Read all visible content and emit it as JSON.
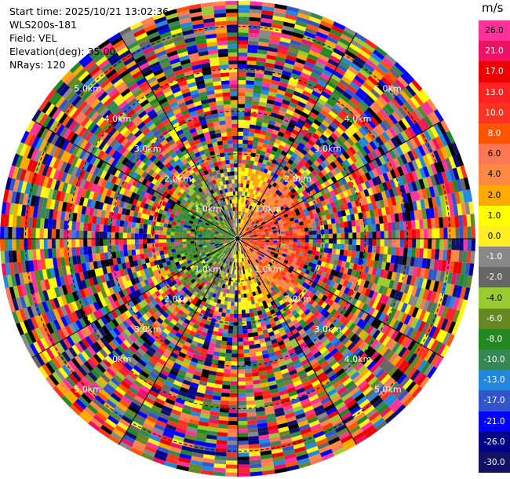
{
  "info": {
    "start_time": "Start time: 2025/10/21 13:02:36",
    "instrument": "WLS200s-181",
    "field": "Field: VEL",
    "elevation": "Elevation(deg): 35.00",
    "nrays": "NRays: 120"
  },
  "colorbar": {
    "unit": "m/s",
    "labels": [
      "26.0",
      "21.0",
      "17.0",
      "13.0",
      "10.0",
      "8.0",
      "6.0",
      "4.0",
      "2.0",
      "1.0",
      "0.0",
      "-1.0",
      "-2.0",
      "-4.0",
      "-6.0",
      "-8.0",
      "-10.0",
      "-13.0",
      "-17.0",
      "-21.0",
      "-26.0",
      "-30.0"
    ],
    "colors": [
      "#ff3399",
      "#ee1166",
      "#ee0000",
      "#ff2222",
      "#ff3322",
      "#ff5500",
      "#ff7755",
      "#ff8844",
      "#ffaa00",
      "#ffff00",
      "#ffee22",
      "#888888",
      "#666666",
      "#99cc33",
      "#668822",
      "#228822",
      "#338855",
      "#2288dd",
      "#3355cc",
      "#0000ff",
      "#000088",
      "#111166"
    ]
  },
  "chart_data": {
    "type": "heatmap",
    "projection": "polar (PPI)",
    "field": "VEL",
    "unit": "m/s",
    "elevation_deg": 35.0,
    "n_rays": 120,
    "range_ring_labels": [
      "1.0km",
      "2.0km",
      "3.0km",
      "4.0km",
      "5.0km"
    ],
    "max_range_km": 5.6,
    "value_range": [
      -30,
      26
    ],
    "pattern": "Near-range velocities: negative (blue/green) toward the west, positive (orange/yellow) toward the east; beyond ~1.5 km values are noisy across the full colour scale."
  }
}
